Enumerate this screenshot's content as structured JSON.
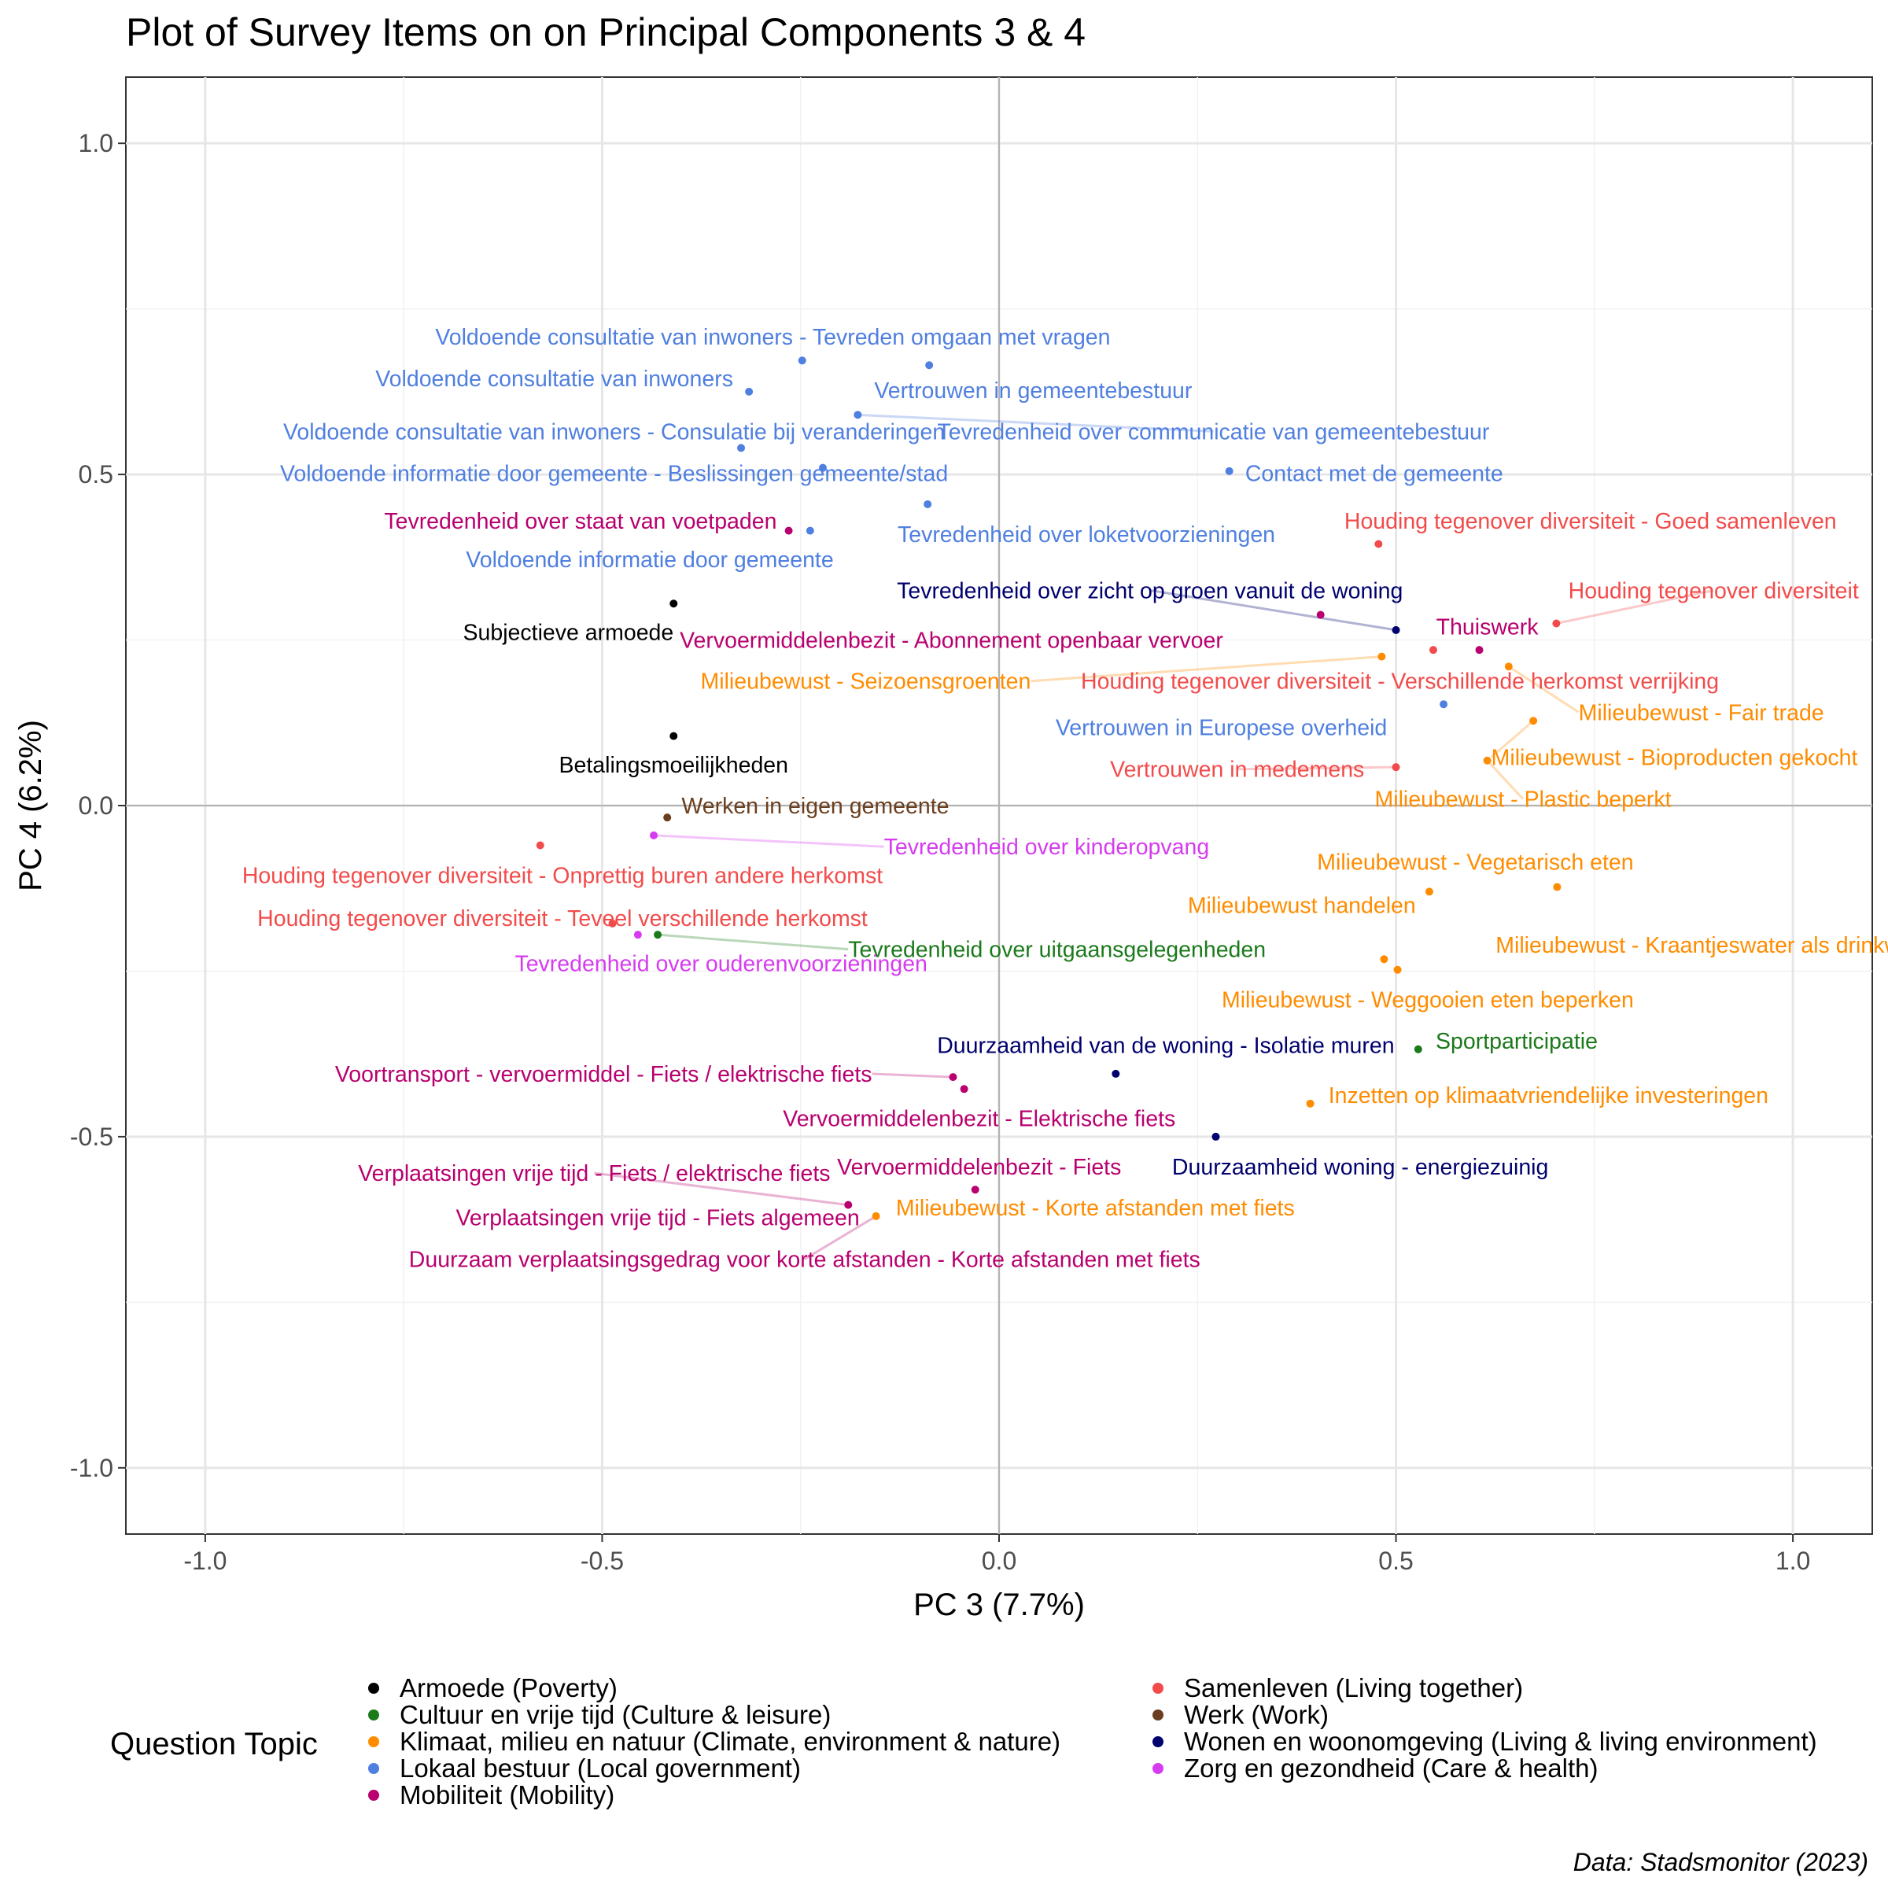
{
  "chart_data": {
    "type": "scatter",
    "title": "Plot of Survey Items on on Principal Components 3 & 4",
    "xlabel": "PC 3 (7.7%)",
    "ylabel": "PC 4 (6.2%)",
    "xlim": [
      -1.1,
      1.1
    ],
    "ylim": [
      -1.1,
      1.1
    ],
    "xticks": [
      -1.0,
      -0.5,
      0.0,
      0.5,
      1.0
    ],
    "yticks": [
      1.0,
      0.5,
      0.0,
      -0.5,
      -1.0
    ],
    "xtick_labels": [
      "-1.0",
      "-0.5",
      "0.0",
      "0.5",
      "1.0"
    ],
    "ytick_labels": [
      "1.0",
      "0.5",
      "0.0",
      "-0.5",
      "-1.0"
    ],
    "grid": true,
    "caption": "Data: Stadsmonitor (2023)",
    "legend": {
      "title": "Question Topic",
      "position": "bottom",
      "entries": [
        {
          "name": "Armoede (Poverty)",
          "color": "#000000"
        },
        {
          "name": "Cultuur en vrije tijd (Culture & leisure)",
          "color": "#1b7a1b"
        },
        {
          "name": "Klimaat, milieu en natuur (Climate, environment & nature)",
          "color": "#ff8c00"
        },
        {
          "name": "Lokaal bestuur (Local government)",
          "color": "#4f7fe0"
        },
        {
          "name": "Mobiliteit (Mobility)",
          "color": "#b8006e"
        },
        {
          "name": "Samenleven (Living together)",
          "color": "#f24b4b"
        },
        {
          "name": "Werk (Work)",
          "color": "#6b3e1e"
        },
        {
          "name": "Wonen en woonomgeving (Living & living environment)",
          "color": "#00006e"
        },
        {
          "name": "Zorg en gezondheid (Care & health)",
          "color": "#d63bf0"
        }
      ]
    },
    "points": [
      {
        "label": "Subjectieve armoede",
        "topic": 0,
        "x": -0.41,
        "y": 0.305,
        "lx": -0.41,
        "ly": 0.262,
        "anchor": "end"
      },
      {
        "label": "Betalingsmoeilijkheden",
        "topic": 0,
        "x": -0.41,
        "y": 0.105,
        "lx": -0.41,
        "ly": 0.062,
        "anchor": "middle"
      },
      {
        "label": "Tevredenheid over uitgaansgelegenheden",
        "topic": 1,
        "x": -0.43,
        "y": -0.195,
        "lx": -0.19,
        "ly": -0.217,
        "anchor": "start",
        "seg": true
      },
      {
        "label": "Sportparticipatie",
        "topic": 1,
        "x": 0.528,
        "y": -0.368,
        "lx": 0.55,
        "ly": -0.355,
        "anchor": "start"
      },
      {
        "label": "Milieubewust - Seizoensgroenten",
        "topic": 2,
        "x": 0.482,
        "y": 0.225,
        "lx": 0.04,
        "ly": 0.188,
        "anchor": "end",
        "seg": true
      },
      {
        "label": "Milieubewust - Fair trade",
        "topic": 2,
        "x": 0.642,
        "y": 0.21,
        "lx": 0.73,
        "ly": 0.141,
        "anchor": "start",
        "seg": true
      },
      {
        "label": "Milieubewust - Bioproducten gekocht",
        "topic": 2,
        "x": 0.673,
        "y": 0.128,
        "lx": 0.62,
        "ly": 0.073,
        "anchor": "start",
        "seg": true
      },
      {
        "label": "Milieubewust - Plastic beperkt",
        "topic": 2,
        "x": 0.615,
        "y": 0.068,
        "lx": 0.66,
        "ly": 0.01,
        "anchor": "middle",
        "seg": true
      },
      {
        "label": "Milieubewust - Vegetarisch eten",
        "topic": 2,
        "x": 0.703,
        "y": -0.123,
        "lx": 0.6,
        "ly": -0.085,
        "anchor": "middle"
      },
      {
        "label": "Milieubewust handelen",
        "topic": 2,
        "x": 0.542,
        "y": -0.13,
        "lx": 0.525,
        "ly": -0.15,
        "anchor": "end"
      },
      {
        "label": "Milieubewust - Kraantjeswater als drinkwater",
        "topic": 2,
        "x": 0.485,
        "y": -0.232,
        "lx": 0.905,
        "ly": -0.21,
        "anchor": "middle"
      },
      {
        "label": "Milieubewust - Weggooien eten beperken",
        "topic": 2,
        "x": 0.502,
        "y": -0.248,
        "lx": 0.54,
        "ly": -0.293,
        "anchor": "middle"
      },
      {
        "label": "Inzetten op klimaatvriendelijke investeringen",
        "topic": 2,
        "x": 0.392,
        "y": -0.45,
        "lx": 0.415,
        "ly": -0.437,
        "anchor": "start"
      },
      {
        "label": "Milieubewust - Korte afstanden met fiets",
        "topic": 2,
        "x": -0.155,
        "y": -0.62,
        "lx": -0.13,
        "ly": -0.607,
        "anchor": "start"
      },
      {
        "label": "Voldoende consultatie van inwoners - Tevreden omgaan met vragen",
        "topic": 3,
        "x": -0.248,
        "y": 0.672,
        "lx": -0.285,
        "ly": 0.708,
        "anchor": "middle"
      },
      {
        "label": "Vertrouwen in gemeentebestuur",
        "topic": 3,
        "x": -0.088,
        "y": 0.665,
        "lx": 0.043,
        "ly": 0.627,
        "anchor": "middle"
      },
      {
        "label": "Voldoende consultatie van inwoners",
        "topic": 3,
        "x": -0.315,
        "y": 0.625,
        "lx": -0.335,
        "ly": 0.645,
        "anchor": "end"
      },
      {
        "label": "Voldoende consultatie van inwoners - Consulatie bij veranderingen",
        "topic": 3,
        "x": -0.178,
        "y": 0.59,
        "lx": -0.485,
        "ly": 0.565,
        "anchor": "middle"
      },
      {
        "label": "Tevredenheid over communicatie van gemeentebestuur",
        "topic": 3,
        "x": -0.178,
        "y": 0.59,
        "lx": 0.27,
        "ly": 0.565,
        "anchor": "middle",
        "seg": true,
        "nodot": true
      },
      {
        "label": "Voldoende informatie door gemeente - Beslissingen gemeente/stad",
        "topic": 3,
        "x": -0.325,
        "y": 0.54,
        "lx": -0.485,
        "ly": 0.502,
        "anchor": "middle"
      },
      {
        "label": "Voldoende informatie door gemeente",
        "topic": 3,
        "x": -0.222,
        "y": 0.51,
        "lx": -0.44,
        "ly": 0.372,
        "anchor": "middle"
      },
      {
        "label": "Contact met de gemeente",
        "topic": 3,
        "x": 0.29,
        "y": 0.505,
        "lx": 0.31,
        "ly": 0.502,
        "anchor": "start"
      },
      {
        "label": "Tevredenheid over loketvoorzieningen",
        "topic": 3,
        "x": -0.09,
        "y": 0.455,
        "lx": 0.11,
        "ly": 0.41,
        "anchor": "middle"
      },
      {
        "label": "Voldoende informatie door gemeente - Beslissingen gemeente/stad",
        "topic": 3,
        "x": -0.238,
        "y": 0.415,
        "lx": -0.238,
        "ly": 0.415,
        "anchor": "middle",
        "nolabel": true
      },
      {
        "label": "Vertrouwen in Europese overheid",
        "topic": 3,
        "x": 0.56,
        "y": 0.153,
        "lx": 0.28,
        "ly": 0.118,
        "anchor": "middle"
      },
      {
        "label": "Tevredenheid over staat van voetpaden",
        "topic": 4,
        "x": -0.265,
        "y": 0.415,
        "lx": -0.28,
        "ly": 0.43,
        "anchor": "end"
      },
      {
        "label": "Vervoermiddelenbezit - Abonnement openbaar vervoer",
        "topic": 4,
        "x": 0.405,
        "y": 0.288,
        "lx": -0.06,
        "ly": 0.25,
        "anchor": "middle"
      },
      {
        "label": "Thuiswerk",
        "topic": 4,
        "x": 0.605,
        "y": 0.235,
        "lx": 0.615,
        "ly": 0.27,
        "anchor": "middle"
      },
      {
        "label": "Voortransport - vervoermiddel - Fiets / elektrische fiets",
        "topic": 4,
        "x": -0.058,
        "y": -0.41,
        "lx": -0.16,
        "ly": -0.405,
        "anchor": "end",
        "seg": true
      },
      {
        "label": "Vervoermiddelenbezit - Elektrische fiets",
        "topic": 4,
        "x": -0.044,
        "y": -0.428,
        "lx": -0.025,
        "ly": -0.472,
        "anchor": "middle"
      },
      {
        "label": "Vervoermiddelenbezit - Fiets",
        "topic": 4,
        "x": -0.03,
        "y": -0.58,
        "lx": -0.025,
        "ly": -0.545,
        "anchor": "middle"
      },
      {
        "label": "Verplaatsingen vrije tijd - Fiets / elektrische fiets",
        "topic": 4,
        "x": -0.19,
        "y": -0.603,
        "lx": -0.51,
        "ly": -0.555,
        "anchor": "middle",
        "seg": true
      },
      {
        "label": "Verplaatsingen vrije tijd - Fiets algemeen",
        "topic": 4,
        "x": -0.19,
        "y": -0.603,
        "lx": -0.43,
        "ly": -0.622,
        "anchor": "middle",
        "nodot": true
      },
      {
        "label": "Duurzaam verplaatsingsgedrag voor korte afstanden - Korte afstanden met fiets",
        "topic": 4,
        "x": -0.155,
        "y": -0.62,
        "lx": -0.245,
        "ly": -0.685,
        "anchor": "middle",
        "seg": true,
        "nodot": true
      },
      {
        "label": "Houding tegenover diversiteit - Goed samenleven",
        "topic": 5,
        "x": 0.478,
        "y": 0.395,
        "lx": 0.745,
        "ly": 0.43,
        "anchor": "middle"
      },
      {
        "label": "Houding tegenover diversiteit",
        "topic": 5,
        "x": 0.702,
        "y": 0.275,
        "lx": 0.9,
        "ly": 0.325,
        "anchor": "middle",
        "seg": true
      },
      {
        "label": "Houding tegenover diversiteit - Verschillende herkomst verrijking",
        "topic": 5,
        "x": 0.547,
        "y": 0.235,
        "lx": 0.505,
        "ly": 0.188,
        "anchor": "middle"
      },
      {
        "label": "Vertrouwen in medemens",
        "topic": 5,
        "x": 0.5,
        "y": 0.058,
        "lx": 0.3,
        "ly": 0.055,
        "anchor": "middle",
        "seg": true
      },
      {
        "label": "Houding tegenover diversiteit - Onprettig buren andere herkomst",
        "topic": 5,
        "x": -0.578,
        "y": -0.06,
        "lx": -0.55,
        "ly": -0.105,
        "anchor": "middle"
      },
      {
        "label": "Houding tegenover diversiteit - Teveel verschillende herkomst",
        "topic": 5,
        "x": -0.487,
        "y": -0.178,
        "lx": -0.55,
        "ly": -0.17,
        "anchor": "middle"
      },
      {
        "label": "Werken in eigen gemeente",
        "topic": 6,
        "x": -0.418,
        "y": -0.018,
        "lx": -0.4,
        "ly": 0.0,
        "anchor": "start"
      },
      {
        "label": "Tevredenheid over zicht op groen vanuit de woning",
        "topic": 7,
        "x": 0.5,
        "y": 0.265,
        "lx": 0.19,
        "ly": 0.325,
        "anchor": "middle",
        "seg": true
      },
      {
        "label": "Duurzaamheid van de woning - Isolatie muren",
        "topic": 7,
        "x": 0.147,
        "y": -0.405,
        "lx": 0.21,
        "ly": -0.362,
        "anchor": "middle"
      },
      {
        "label": "Duurzaamheid woning - energiezuinig",
        "topic": 7,
        "x": 0.273,
        "y": -0.5,
        "lx": 0.455,
        "ly": -0.545,
        "anchor": "middle"
      },
      {
        "label": "Tevredenheid over kinderopvang",
        "topic": 8,
        "x": -0.435,
        "y": -0.045,
        "lx": -0.145,
        "ly": -0.062,
        "anchor": "start",
        "seg": true
      },
      {
        "label": "Tevredenheid over ouderenvoorzieningen",
        "topic": 8,
        "x": -0.455,
        "y": -0.195,
        "lx": -0.61,
        "ly": -0.238,
        "anchor": "start"
      }
    ]
  }
}
